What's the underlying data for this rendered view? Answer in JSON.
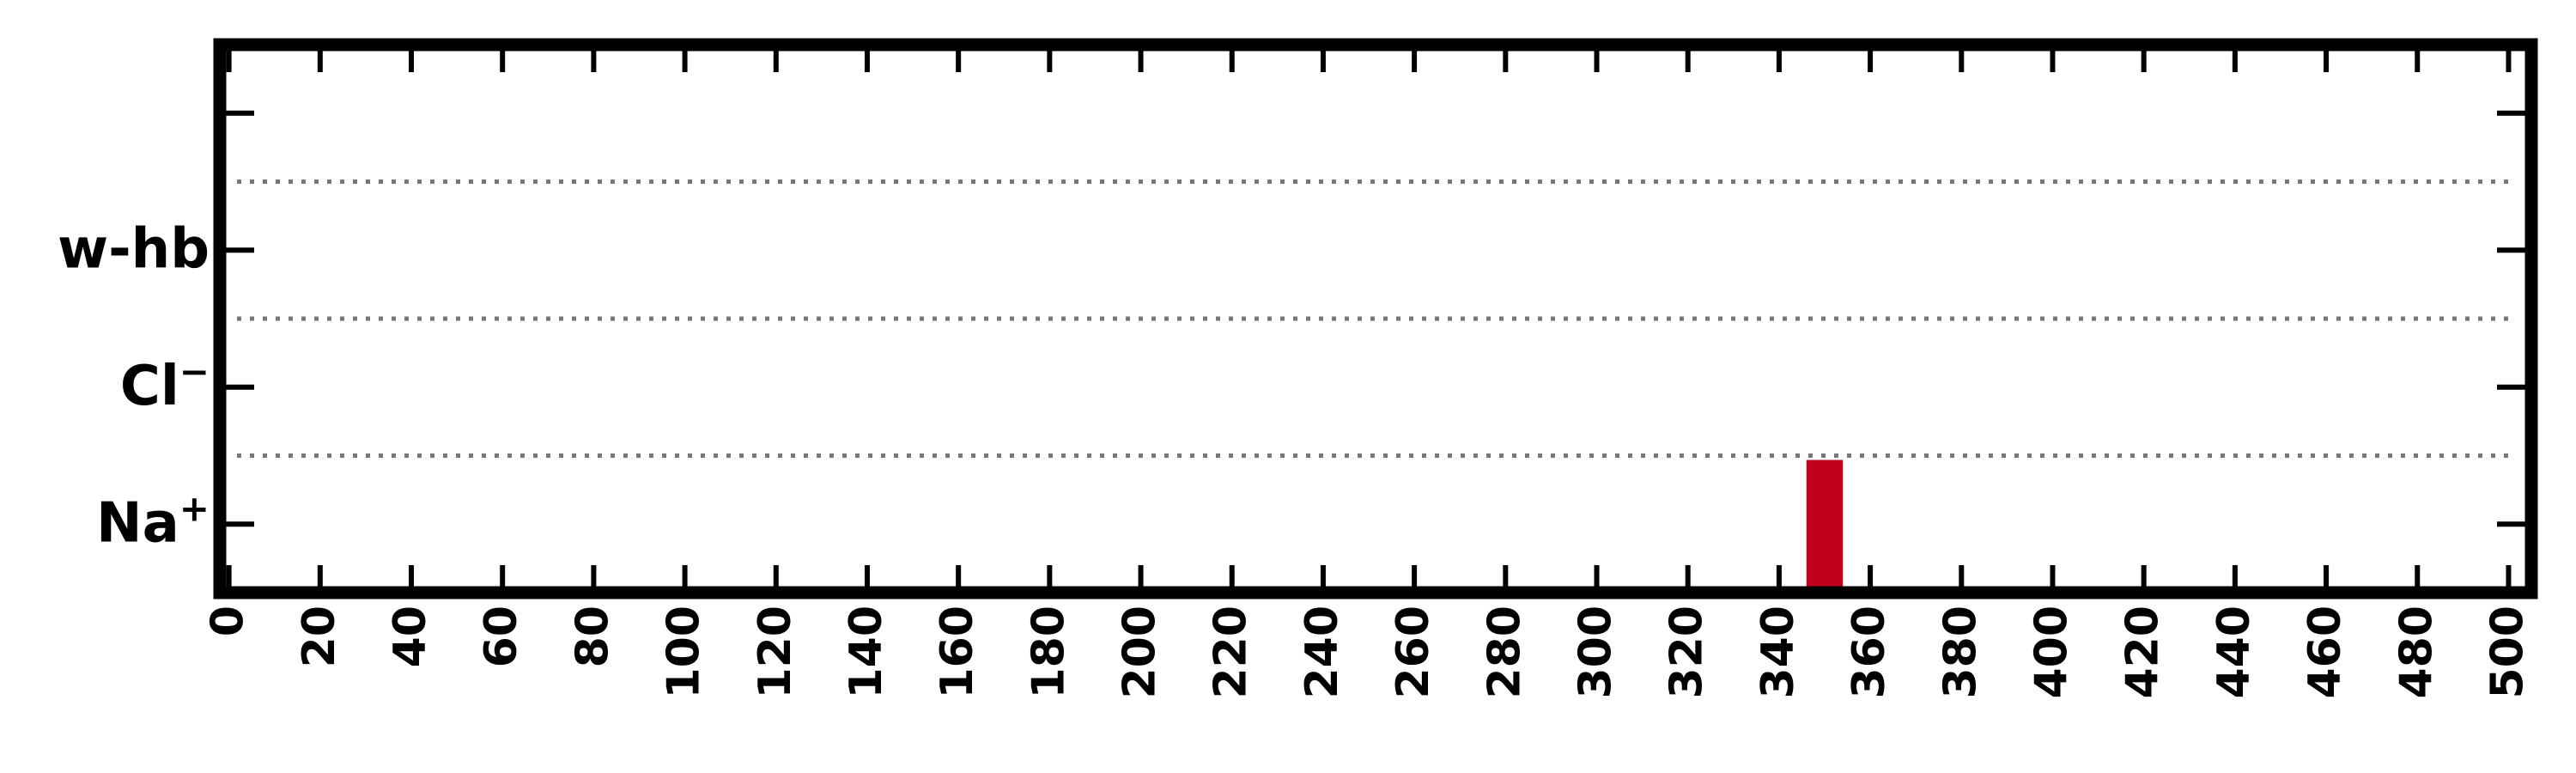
{
  "chart_data": {
    "type": "bar",
    "title": "",
    "xlabel": "",
    "ylabel": "",
    "xlim": [
      -2,
      505
    ],
    "x_ticks": [
      0,
      20,
      40,
      60,
      80,
      100,
      120,
      140,
      160,
      180,
      200,
      220,
      240,
      260,
      280,
      300,
      320,
      340,
      360,
      380,
      400,
      420,
      440,
      460,
      480,
      500
    ],
    "categories": [
      {
        "name": "Na",
        "sup": "+"
      },
      {
        "name": "Cl",
        "sup": "−"
      },
      {
        "name": "w-hb",
        "sup": ""
      }
    ],
    "bars": [
      {
        "category": "Na",
        "x_start": 346,
        "x_end": 354
      }
    ],
    "colors": {
      "bar": "#c0001a",
      "frame": "#000000",
      "grid": "#777777"
    },
    "grid": "dotted horizontal separators between categories"
  }
}
